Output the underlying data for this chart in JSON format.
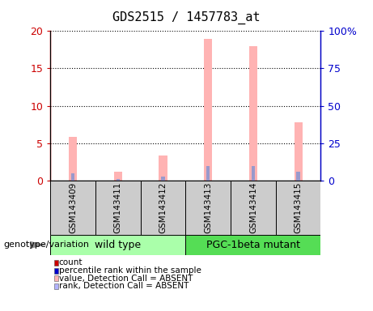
{
  "title": "GDS2515 / 1457783_at",
  "samples": [
    "GSM143409",
    "GSM143411",
    "GSM143412",
    "GSM143413",
    "GSM143414",
    "GSM143415"
  ],
  "pink_bars": [
    5.8,
    1.2,
    3.3,
    19.0,
    18.0,
    7.8
  ],
  "blue_bars": [
    4.5,
    1.1,
    2.5,
    9.5,
    9.5,
    5.8
  ],
  "ylim_left": [
    0,
    20
  ],
  "ylim_right": [
    0,
    100
  ],
  "yticks_left": [
    0,
    5,
    10,
    15,
    20
  ],
  "yticks_right": [
    0,
    25,
    50,
    75,
    100
  ],
  "ytick_labels_left": [
    "0",
    "5",
    "10",
    "15",
    "20"
  ],
  "ytick_labels_right": [
    "0",
    "25",
    "50",
    "75",
    "100%"
  ],
  "left_tick_color": "#cc0000",
  "right_tick_color": "#0000cc",
  "wild_type_label": "wild type",
  "mutant_label": "PGC-1beta mutant",
  "group_label": "genotype/variation",
  "legend_labels": [
    "count",
    "percentile rank within the sample",
    "value, Detection Call = ABSENT",
    "rank, Detection Call = ABSENT"
  ],
  "legend_colors": [
    "#cc0000",
    "#0000cc",
    "#ffb3b3",
    "#b3b3ff"
  ],
  "pink_color": "#ffb3b3",
  "blue_color": "#9999cc",
  "group_wt_color": "#aaffaa",
  "group_mut_color": "#55dd55"
}
